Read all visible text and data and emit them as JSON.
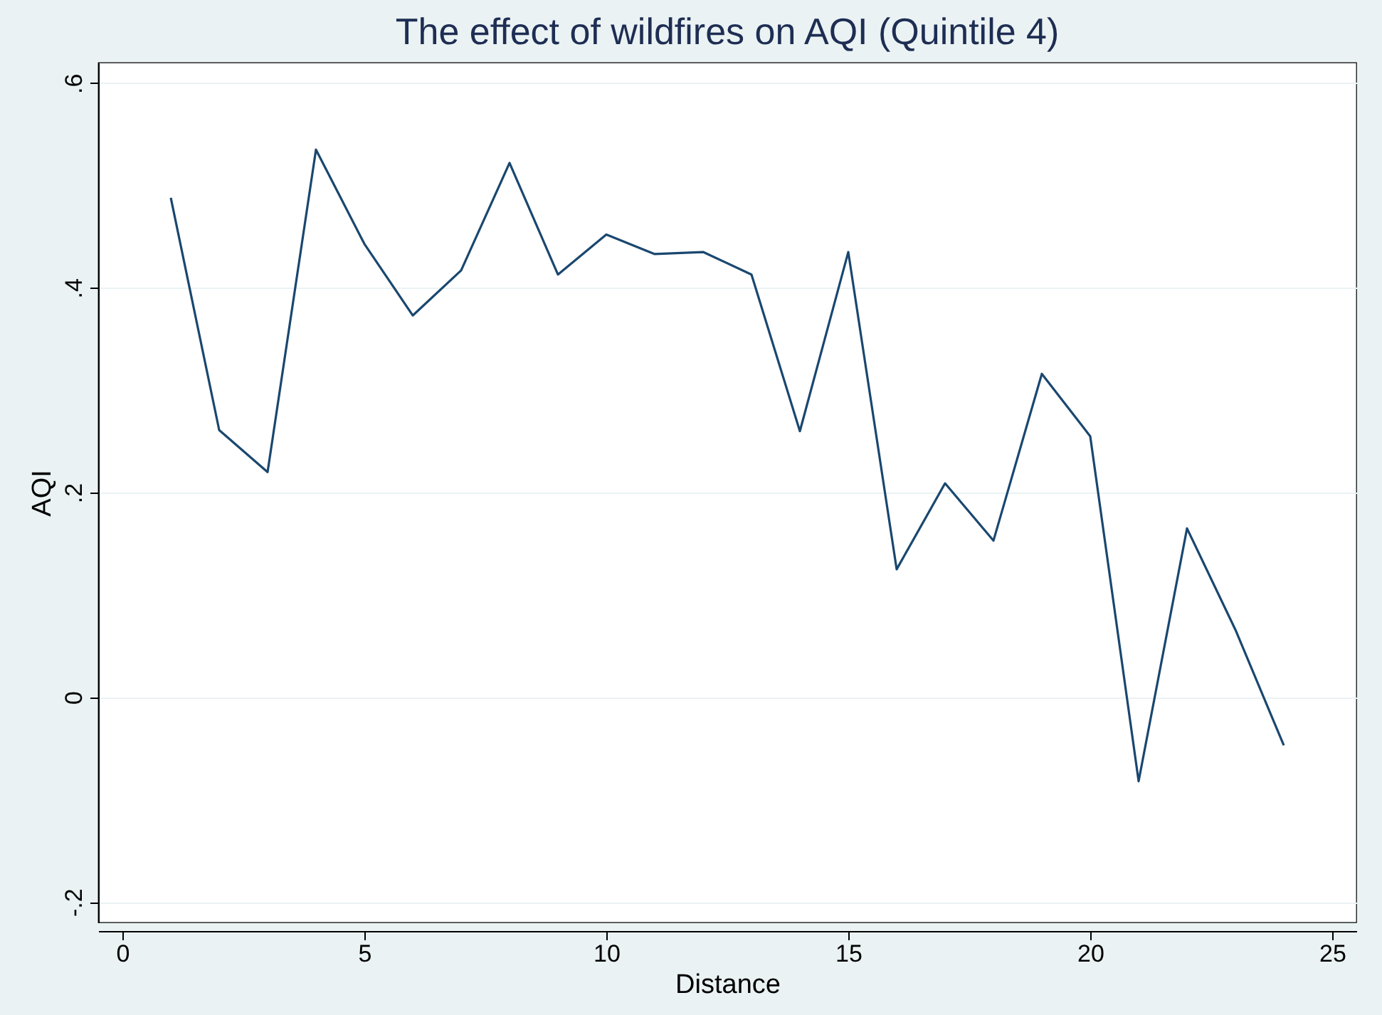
{
  "chart_data": {
    "type": "line",
    "title": "The effect of wildfires on AQI (Quintile 4)",
    "xlabel": "Distance",
    "ylabel": "AQI",
    "x": [
      1,
      2,
      3,
      4,
      5,
      6,
      7,
      8,
      9,
      10,
      11,
      12,
      13,
      14,
      15,
      16,
      17,
      18,
      19,
      20,
      21,
      22,
      23,
      24
    ],
    "series": [
      {
        "color": "#1a476f",
        "values": [
          0.488,
          0.261,
          0.22,
          0.535,
          0.443,
          0.373,
          0.417,
          0.522,
          0.413,
          0.452,
          0.433,
          0.435,
          0.413,
          0.26,
          0.435,
          0.125,
          0.209,
          0.153,
          0.316,
          0.255,
          -0.082,
          0.165,
          0.066,
          -0.047
        ]
      }
    ],
    "xlim": [
      -0.5,
      25.5
    ],
    "xticks": [
      0,
      5,
      10,
      15,
      20,
      25
    ],
    "ylim": [
      -0.22,
      0.62
    ],
    "yticks": [
      {
        "value": -0.2,
        "label": "-.2"
      },
      0,
      {
        "value": 0.2,
        "label": ".2"
      },
      {
        "value": 0.4,
        "label": ".4"
      },
      {
        "value": 0.6,
        "label": ".6"
      }
    ],
    "grid": "y",
    "marker": "none",
    "line_style": "solid"
  }
}
